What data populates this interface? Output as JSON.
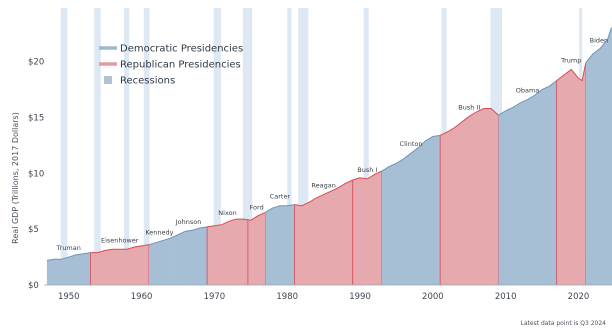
{
  "chart_data": {
    "type": "area",
    "ylabel": "Real GDP (Trillions, 2017 Dollars)",
    "xlim": [
      1946.6,
      2024.6
    ],
    "ylim": [
      0,
      24.8
    ],
    "y_ticks": [
      {
        "value": 0,
        "label": "$0"
      },
      {
        "value": 5,
        "label": "$5"
      },
      {
        "value": 10,
        "label": "$10"
      },
      {
        "value": 15,
        "label": "$15"
      },
      {
        "value": 20,
        "label": "$20"
      }
    ],
    "x_ticks": [
      {
        "value": 1950,
        "label": "1950"
      },
      {
        "value": 1960,
        "label": "1960"
      },
      {
        "value": 1970,
        "label": "1970"
      },
      {
        "value": 1980,
        "label": "1980"
      },
      {
        "value": 1990,
        "label": "1990"
      },
      {
        "value": 2000,
        "label": "2000"
      },
      {
        "value": 2010,
        "label": "2010"
      },
      {
        "value": 2020,
        "label": "2020"
      }
    ],
    "gdp": {
      "x": [
        1947,
        1948,
        1949,
        1950,
        1951,
        1952,
        1953,
        1954,
        1955,
        1956,
        1957,
        1958,
        1959,
        1960,
        1961,
        1962,
        1963,
        1964,
        1965,
        1966,
        1967,
        1968,
        1969,
        1970,
        1971,
        1972,
        1973,
        1974,
        1975,
        1976,
        1977,
        1978,
        1979,
        1980,
        1981,
        1982,
        1983,
        1984,
        1985,
        1986,
        1987,
        1988,
        1989,
        1990,
        1991,
        1992,
        1993,
        1994,
        1995,
        1996,
        1997,
        1998,
        1999,
        2000,
        2001,
        2002,
        2003,
        2004,
        2005,
        2006,
        2007,
        2008,
        2009,
        2010,
        2011,
        2012,
        2013,
        2014,
        2015,
        2016,
        2017,
        2018,
        2019,
        2020,
        2020.5,
        2021,
        2022,
        2023,
        2024,
        2024.5
      ],
      "values": [
        2.2,
        2.3,
        2.3,
        2.5,
        2.7,
        2.8,
        2.9,
        2.9,
        3.1,
        3.2,
        3.2,
        3.2,
        3.4,
        3.5,
        3.6,
        3.8,
        4.0,
        4.2,
        4.5,
        4.8,
        4.9,
        5.1,
        5.2,
        5.3,
        5.4,
        5.7,
        5.9,
        5.9,
        5.8,
        6.2,
        6.5,
        6.9,
        7.1,
        7.1,
        7.2,
        7.1,
        7.4,
        7.8,
        8.1,
        8.4,
        8.7,
        9.1,
        9.4,
        9.6,
        9.5,
        9.9,
        10.2,
        10.6,
        10.9,
        11.3,
        11.8,
        12.3,
        12.9,
        13.3,
        13.4,
        13.7,
        14.1,
        14.6,
        15.1,
        15.5,
        15.8,
        15.8,
        15.2,
        15.6,
        15.9,
        16.3,
        16.6,
        17.0,
        17.5,
        17.8,
        18.3,
        18.8,
        19.3,
        18.5,
        18.3,
        19.9,
        20.7,
        21.2,
        22.0,
        23.0
      ]
    },
    "presidencies": [
      {
        "label": "Truman",
        "party": "D",
        "start": 1947,
        "end": 1953
      },
      {
        "label": "Eisenhower",
        "party": "R",
        "start": 1953,
        "end": 1961
      },
      {
        "label": "Kennedy",
        "party": "D",
        "start": 1961,
        "end": 1963.9
      },
      {
        "label": "Johnson",
        "party": "D",
        "start": 1963.9,
        "end": 1969
      },
      {
        "label": "Nixon",
        "party": "R",
        "start": 1969,
        "end": 1974.6
      },
      {
        "label": "Ford",
        "party": "R",
        "start": 1974.6,
        "end": 1977
      },
      {
        "label": "Carter",
        "party": "D",
        "start": 1977,
        "end": 1981
      },
      {
        "label": "Reagan",
        "party": "R",
        "start": 1981,
        "end": 1989
      },
      {
        "label": "Bush I",
        "party": "R",
        "start": 1989,
        "end": 1993
      },
      {
        "label": "Clinton",
        "party": "D",
        "start": 1993,
        "end": 2001
      },
      {
        "label": "Bush II",
        "party": "R",
        "start": 2001,
        "end": 2009
      },
      {
        "label": "Obama",
        "party": "D",
        "start": 2009,
        "end": 2017
      },
      {
        "label": "Trump",
        "party": "R",
        "start": 2017,
        "end": 2021
      },
      {
        "label": "Biden",
        "party": "D",
        "start": 2021,
        "end": 2024.6
      }
    ],
    "recessions": [
      [
        1948.9,
        1949.8
      ],
      [
        1953.5,
        1954.4
      ],
      [
        1957.6,
        1958.3
      ],
      [
        1960.3,
        1961.1
      ],
      [
        1969.9,
        1970.9
      ],
      [
        1973.9,
        1975.2
      ],
      [
        1980.0,
        1980.6
      ],
      [
        1981.5,
        1982.9
      ],
      [
        1990.5,
        1991.2
      ],
      [
        2001.2,
        2001.9
      ],
      [
        2007.9,
        2009.5
      ],
      [
        2020.1,
        2020.4
      ]
    ],
    "legend": [
      {
        "label": "Democratic Presidencies",
        "color": "#9fb9cf",
        "kind": "line"
      },
      {
        "label": "Republican Presidencies",
        "color": "#e49aa0",
        "kind": "line"
      },
      {
        "label": "Recessions",
        "color": "#b3c3d3",
        "kind": "square"
      }
    ],
    "legend_placement": "top-left",
    "colors": {
      "democratic_fill": "#a7bfd4",
      "republican_fill": "#e6a9ad",
      "republican_line": "#d94a57",
      "democratic_line": "#6f94b6",
      "recession": "#dde8f3"
    },
    "grid": false
  },
  "footnote": "Latest data point is Q3 2024"
}
